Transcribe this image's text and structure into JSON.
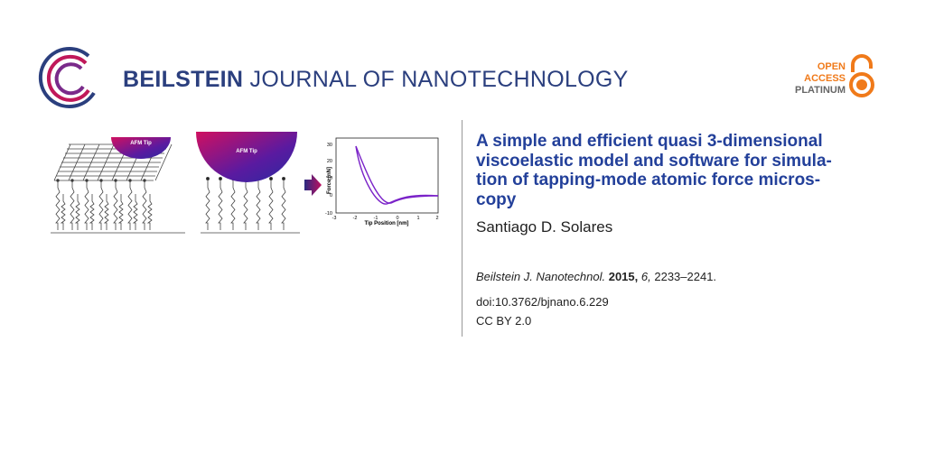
{
  "header": {
    "journal_bold": "BEILSTEIN",
    "journal_rest": "JOURNAL OF NANOTECHNOLOGY",
    "badge": [
      "OPEN",
      "ACCESS",
      "PLATINUM"
    ]
  },
  "graphic": {
    "tip_labels": [
      "AFM Tip",
      "AFM Tip"
    ],
    "plot": {
      "ylabel": "Force [nN]",
      "xlabel": "Tip Position [nm]",
      "yticks": [
        "30",
        "20",
        "10",
        "0",
        "-10"
      ],
      "xticks": [
        "-3",
        "-2",
        "-1",
        "0",
        "1",
        "2"
      ]
    }
  },
  "article": {
    "title_lines": [
      "A simple and efficient quasi 3-dimensional",
      "viscoelastic model and software for simula-",
      "tion of tapping-mode atomic force micros-",
      "copy"
    ],
    "author": "Santiago D. Solares",
    "citation": {
      "journal": "Beilstein J. Nanotechnol.",
      "year": "2015,",
      "volume": "6,",
      "pages": "2233–2241."
    },
    "doi": "doi:10.3762/bjnano.6.229",
    "license": "CC BY 2.0"
  }
}
